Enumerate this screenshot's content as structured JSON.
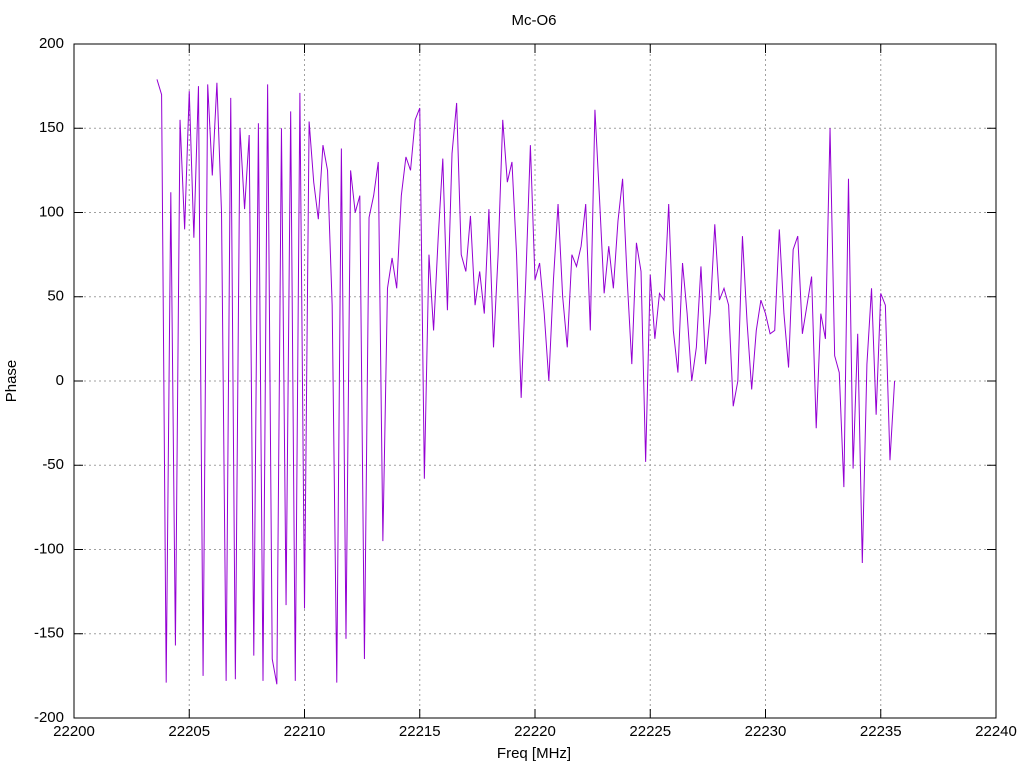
{
  "chart_data": {
    "type": "line",
    "title": "Mc-O6",
    "x_label": "Freq [MHz]",
    "y_label": "Phase",
    "color": "#9400d3",
    "grid": true,
    "xlim": [
      22200,
      22240
    ],
    "xticks": [
      22200,
      22205,
      22210,
      22215,
      22220,
      22225,
      22230,
      22235,
      22240
    ],
    "ylim": [
      -200,
      200
    ],
    "yticks": [
      -200,
      -150,
      -100,
      -50,
      0,
      50,
      100,
      150,
      200
    ],
    "x": [
      22203.6,
      22203.8,
      22204.0,
      22204.2,
      22204.4,
      22204.6,
      22204.8,
      22205.0,
      22205.2,
      22205.4,
      22205.6,
      22205.8,
      22206.0,
      22206.2,
      22206.4,
      22206.6,
      22206.8,
      22207.0,
      22207.2,
      22207.4,
      22207.6,
      22207.8,
      22208.0,
      22208.2,
      22208.4,
      22208.6,
      22208.8,
      22209.0,
      22209.2,
      22209.4,
      22209.6,
      22209.8,
      22210.0,
      22210.2,
      22210.4,
      22210.6,
      22210.8,
      22211.0,
      22211.2,
      22211.4,
      22211.6,
      22211.8,
      22212.0,
      22212.2,
      22212.4,
      22212.6,
      22212.8,
      22213.0,
      22213.2,
      22213.4,
      22213.6,
      22213.8,
      22214.0,
      22214.2,
      22214.4,
      22214.6,
      22214.8,
      22215.0,
      22215.2,
      22215.4,
      22215.6,
      22215.8,
      22216.0,
      22216.2,
      22216.4,
      22216.6,
      22216.8,
      22217.0,
      22217.2,
      22217.4,
      22217.6,
      22217.8,
      22218.0,
      22218.2,
      22218.4,
      22218.6,
      22218.8,
      22219.0,
      22219.2,
      22219.4,
      22219.6,
      22219.8,
      22220.0,
      22220.2,
      22220.4,
      22220.6,
      22220.8,
      22221.0,
      22221.2,
      22221.4,
      22221.6,
      22221.8,
      22222.0,
      22222.2,
      22222.4,
      22222.6,
      22222.8,
      22223.0,
      22223.2,
      22223.4,
      22223.6,
      22223.8,
      22224.0,
      22224.2,
      22224.4,
      22224.6,
      22224.8,
      22225.0,
      22225.2,
      22225.4,
      22225.6,
      22225.8,
      22226.0,
      22226.2,
      22226.4,
      22226.6,
      22226.8,
      22227.0,
      22227.2,
      22227.4,
      22227.6,
      22227.8,
      22228.0,
      22228.2,
      22228.4,
      22228.6,
      22228.8,
      22229.0,
      22229.2,
      22229.4,
      22229.6,
      22229.8,
      22230.0,
      22230.2,
      22230.4,
      22230.6,
      22230.8,
      22231.0,
      22231.2,
      22231.4,
      22231.6,
      22231.8,
      22232.0,
      22232.2,
      22232.4,
      22232.6,
      22232.8,
      22233.0,
      22233.2,
      22233.4,
      22233.6,
      22233.8,
      22234.0,
      22234.2,
      22234.4,
      22234.6,
      22234.8,
      22235.0,
      22235.2,
      22235.4,
      22235.6
    ],
    "values": [
      179,
      170,
      -179,
      112,
      -157,
      155,
      90,
      172,
      85,
      175,
      -175,
      176,
      122,
      177,
      100,
      -178,
      168,
      -177,
      150,
      102,
      146,
      -163,
      153,
      -178,
      176,
      -165,
      -180,
      150,
      -133,
      160,
      -178,
      171,
      -135,
      154,
      118,
      96,
      140,
      125,
      45,
      -179,
      138,
      -153,
      125,
      100,
      110,
      -165,
      97,
      110,
      130,
      -95,
      55,
      73,
      55,
      110,
      133,
      125,
      155,
      162,
      -58,
      75,
      30,
      85,
      132,
      42,
      135,
      165,
      75,
      65,
      98,
      45,
      65,
      40,
      102,
      20,
      75,
      155,
      118,
      130,
      75,
      -10,
      60,
      140,
      60,
      70,
      40,
      0,
      60,
      105,
      50,
      20,
      75,
      68,
      80,
      105,
      30,
      161,
      108,
      52,
      80,
      55,
      95,
      120,
      60,
      10,
      82,
      65,
      -48,
      63,
      25,
      52,
      48,
      105,
      30,
      5,
      70,
      40,
      0,
      20,
      68,
      10,
      40,
      93,
      48,
      55,
      45,
      -15,
      0,
      86,
      35,
      -5,
      30,
      48,
      40,
      28,
      30,
      90,
      40,
      8,
      78,
      86,
      28,
      45,
      62,
      -28,
      40,
      25,
      150,
      15,
      5,
      -63,
      120,
      -52,
      28,
      -108,
      10,
      55,
      -20,
      52,
      45,
      -47,
      0
    ]
  }
}
